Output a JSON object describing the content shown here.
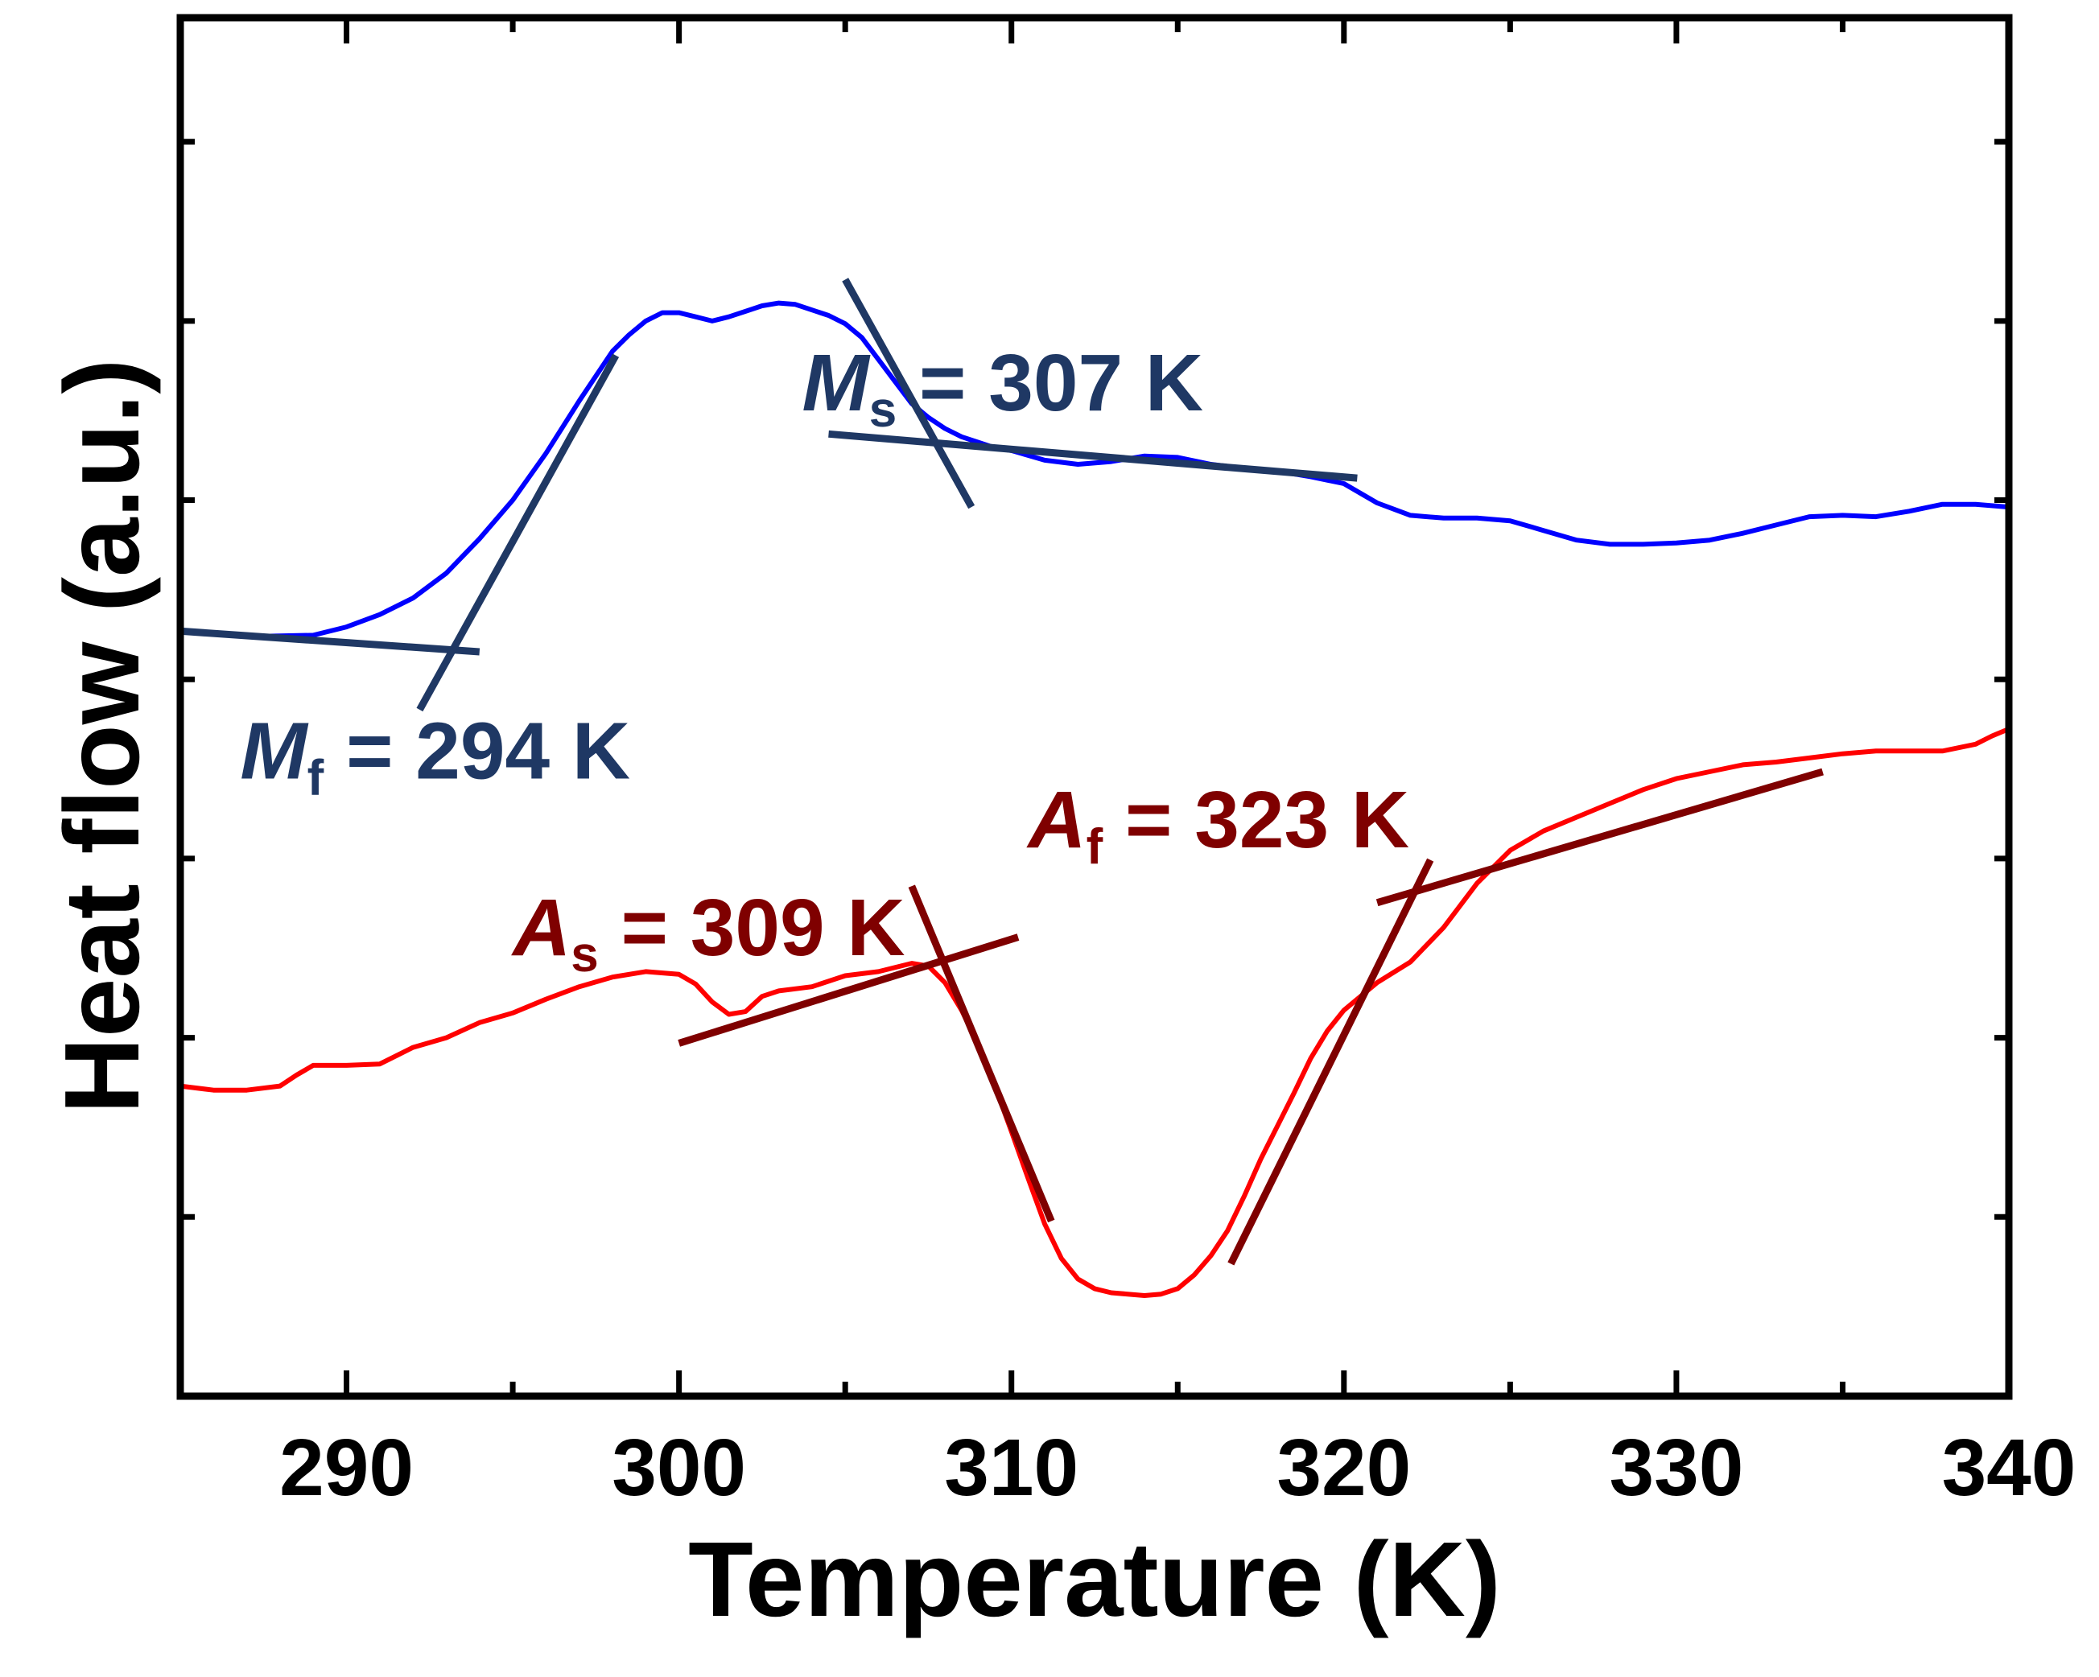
{
  "chart_data": {
    "type": "line",
    "xlabel": "Temperature (K)",
    "ylabel": "Heat flow (a.u.)",
    "xlim": [
      285,
      340
    ],
    "ylim": [
      0,
      10
    ],
    "xticks": [
      290,
      300,
      310,
      320,
      330,
      340
    ],
    "xtick_labels": [
      "290",
      "300",
      "310",
      "320",
      "330",
      "340"
    ],
    "y_minor_ticks": [
      1.3,
      2.6,
      3.9,
      5.2,
      6.5,
      7.8,
      9.1
    ],
    "grid": false,
    "colors": {
      "cooling": "#0000ff",
      "heating": "#ff0000",
      "cooling_tangent": "#1f3864",
      "heating_tangent": "#7f0000",
      "axis": "#000000"
    },
    "series": [
      {
        "name": "cooling",
        "x": [
          285,
          287,
          289,
          290,
          291,
          292,
          293,
          294,
          295,
          296,
          297,
          298,
          298.5,
          299,
          299.5,
          300,
          300.5,
          301,
          301.5,
          302,
          302.5,
          303,
          303.5,
          304,
          304.5,
          305,
          305.5,
          306,
          306.5,
          307,
          307.5,
          308,
          308.5,
          309,
          309.5,
          310,
          311,
          312,
          313,
          314,
          315,
          316,
          317,
          318,
          319,
          320,
          321,
          322,
          323,
          324,
          325,
          326,
          327,
          328,
          329,
          330,
          331,
          332,
          333,
          334,
          335,
          336,
          337,
          338,
          339,
          340
        ],
        "y": [
          5.55,
          5.51,
          5.52,
          5.58,
          5.67,
          5.79,
          5.97,
          6.22,
          6.5,
          6.84,
          7.22,
          7.58,
          7.7,
          7.8,
          7.86,
          7.86,
          7.83,
          7.8,
          7.83,
          7.87,
          7.91,
          7.93,
          7.92,
          7.88,
          7.84,
          7.78,
          7.68,
          7.52,
          7.36,
          7.2,
          7.1,
          7.02,
          6.96,
          6.92,
          6.88,
          6.86,
          6.79,
          6.76,
          6.78,
          6.82,
          6.81,
          6.76,
          6.73,
          6.71,
          6.67,
          6.62,
          6.48,
          6.39,
          6.37,
          6.37,
          6.35,
          6.28,
          6.21,
          6.18,
          6.18,
          6.19,
          6.21,
          6.26,
          6.32,
          6.38,
          6.39,
          6.38,
          6.42,
          6.47,
          6.47,
          6.45
        ]
      },
      {
        "name": "heating",
        "x": [
          285,
          286,
          287,
          288,
          288.5,
          289,
          290,
          291,
          291.5,
          292,
          293,
          294,
          295,
          296,
          297,
          298,
          299,
          300,
          300.5,
          301,
          301.5,
          302,
          302.5,
          303,
          304,
          305,
          306,
          307,
          307.5,
          308,
          308.5,
          309,
          309.5,
          310,
          310.5,
          311,
          311.5,
          312,
          312.5,
          313,
          313.5,
          314,
          314.5,
          315,
          315.5,
          316,
          316.5,
          317,
          317.5,
          318,
          318.5,
          319,
          319.5,
          320,
          321,
          322,
          323,
          324,
          325,
          326,
          327,
          328,
          329,
          330,
          331,
          332,
          333,
          334,
          335,
          336,
          337,
          338,
          339,
          339.5,
          340
        ],
        "y": [
          2.25,
          2.22,
          2.22,
          2.25,
          2.33,
          2.4,
          2.4,
          2.41,
          2.47,
          2.53,
          2.6,
          2.71,
          2.78,
          2.88,
          2.97,
          3.04,
          3.08,
          3.06,
          2.99,
          2.86,
          2.77,
          2.79,
          2.9,
          2.94,
          2.97,
          3.05,
          3.08,
          3.14,
          3.12,
          3.0,
          2.8,
          2.55,
          2.25,
          1.92,
          1.58,
          1.25,
          1.0,
          0.85,
          0.78,
          0.75,
          0.74,
          0.73,
          0.74,
          0.78,
          0.88,
          1.02,
          1.2,
          1.45,
          1.72,
          1.96,
          2.2,
          2.45,
          2.65,
          2.8,
          3.0,
          3.15,
          3.4,
          3.72,
          3.96,
          4.1,
          4.2,
          4.3,
          4.4,
          4.48,
          4.53,
          4.58,
          4.6,
          4.63,
          4.66,
          4.68,
          4.68,
          4.68,
          4.73,
          4.79,
          4.84
        ]
      }
    ],
    "tangent_lines": [
      {
        "name": "mf-baseline",
        "series": "cooling",
        "x1": 285,
        "y1": 5.55,
        "x2": 294,
        "y2": 5.4
      },
      {
        "name": "mf-slope",
        "series": "cooling",
        "x1": 292.2,
        "y1": 4.98,
        "x2": 298.1,
        "y2": 7.55
      },
      {
        "name": "ms-slope",
        "series": "cooling",
        "x1": 305,
        "y1": 8.1,
        "x2": 308.8,
        "y2": 6.45
      },
      {
        "name": "ms-baseline",
        "series": "cooling",
        "x1": 304.5,
        "y1": 6.98,
        "x2": 320.4,
        "y2": 6.66
      },
      {
        "name": "as-baseline",
        "series": "heating",
        "x1": 300,
        "y1": 2.56,
        "x2": 310.2,
        "y2": 3.33
      },
      {
        "name": "as-slope",
        "series": "heating",
        "x1": 307,
        "y1": 3.7,
        "x2": 311.2,
        "y2": 1.27
      },
      {
        "name": "af-slope",
        "series": "heating",
        "x1": 316.6,
        "y1": 0.96,
        "x2": 322.6,
        "y2": 3.89
      },
      {
        "name": "af-baseline",
        "series": "heating",
        "x1": 321,
        "y1": 3.58,
        "x2": 334.4,
        "y2": 4.53
      }
    ],
    "annotations": [
      {
        "name": "ms-label",
        "symbol": "M",
        "sub": "s",
        "text": " = 307 K",
        "x": 303.7,
        "y": 7.15,
        "series": "cooling"
      },
      {
        "name": "mf-label",
        "symbol": "M",
        "sub": "f",
        "text": " = 294 K",
        "x": 286.8,
        "y": 4.48,
        "series": "cooling"
      },
      {
        "name": "as-label",
        "symbol": "A",
        "sub": "s",
        "text": " = 309 K",
        "x": 295,
        "y": 3.2,
        "series": "heating"
      },
      {
        "name": "af-label",
        "symbol": "A",
        "sub": "f",
        "text": " = 323 K",
        "x": 310.5,
        "y": 3.98,
        "series": "heating"
      }
    ]
  }
}
